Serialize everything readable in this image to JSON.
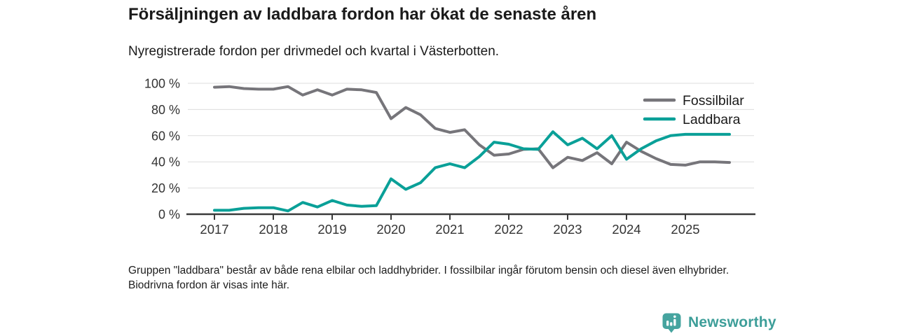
{
  "title": "Försäljningen av laddbara fordon har ökat de senaste åren",
  "subtitle": "Nyregistrerade fordon per drivmedel och kvartal i Västerbotten.",
  "footnote": "Gruppen \"laddbara\" består av både rena elbilar och laddhybrider. I fossilbilar ingår förutom bensin och diesel även elhybrider. Biodrivna fordon är visas inte här.",
  "logo": {
    "text": "Newsworthy",
    "icon": "bar-chart-badge-icon",
    "badge_color": "#46a49f",
    "text_color": "#3d9e99"
  },
  "colors": {
    "fossil_line": "#76757a",
    "laddbara_line": "#0aa098",
    "axis": "#3a3a3a",
    "grid": "#dddddd",
    "tick_text": "#333333",
    "legend_text": "#1a1a1a"
  },
  "chart_data": {
    "type": "line",
    "title": "Försäljningen av laddbara fordon har ökat de senaste åren",
    "subtitle": "Nyregistrerade fordon per drivmedel och kvartal i Västerbotten.",
    "xlabel": "",
    "ylabel": "",
    "ylim": [
      0,
      100
    ],
    "grid": "horizontal",
    "legend_position": "top-right",
    "y_ticks": [
      0,
      20,
      40,
      60,
      80,
      100
    ],
    "y_tick_labels": [
      "0 %",
      "20 %",
      "40 %",
      "60 %",
      "80 %",
      "100 %"
    ],
    "x_tick_labels": [
      "2017",
      "2018",
      "2019",
      "2020",
      "2021",
      "2022",
      "2023",
      "2024",
      "2025"
    ],
    "x": [
      "2017-K1",
      "2017-K2",
      "2017-K3",
      "2017-K4",
      "2018-K1",
      "2018-K2",
      "2018-K3",
      "2018-K4",
      "2019-K1",
      "2019-K2",
      "2019-K3",
      "2019-K4",
      "2020-K1",
      "2020-K2",
      "2020-K3",
      "2020-K4",
      "2021-K1",
      "2021-K2",
      "2021-K3",
      "2021-K4",
      "2022-K1",
      "2022-K2",
      "2022-K3",
      "2022-K4",
      "2023-K1",
      "2023-K2",
      "2023-K3",
      "2023-K4",
      "2024-K1",
      "2024-K2",
      "2024-K3",
      "2024-K4",
      "2025-K1",
      "2025-K2",
      "2025-K3",
      "2025-K4"
    ],
    "series": [
      {
        "name": "Fossilbilar",
        "color": "#76757a",
        "values": [
          97,
          97.5,
          96,
          95.5,
          95.5,
          97.5,
          91,
          95,
          91,
          95.5,
          95,
          93,
          73,
          81.5,
          76,
          65.5,
          62.5,
          64.5,
          53,
          45,
          46,
          49.5,
          50,
          35.5,
          43.5,
          41,
          47,
          38.5,
          55,
          48,
          42.5,
          38,
          37.5,
          40,
          40,
          39.5
        ]
      },
      {
        "name": "Laddbara",
        "color": "#0aa098",
        "values": [
          3,
          3,
          4.5,
          5,
          5,
          2.5,
          9,
          5.5,
          10.5,
          7,
          6,
          6.5,
          27,
          19,
          24,
          35.5,
          38.5,
          35.5,
          44,
          55,
          53.5,
          50,
          49.5,
          63,
          53,
          58,
          50,
          60,
          42,
          50,
          56,
          60,
          61,
          61,
          61,
          61
        ]
      }
    ]
  }
}
